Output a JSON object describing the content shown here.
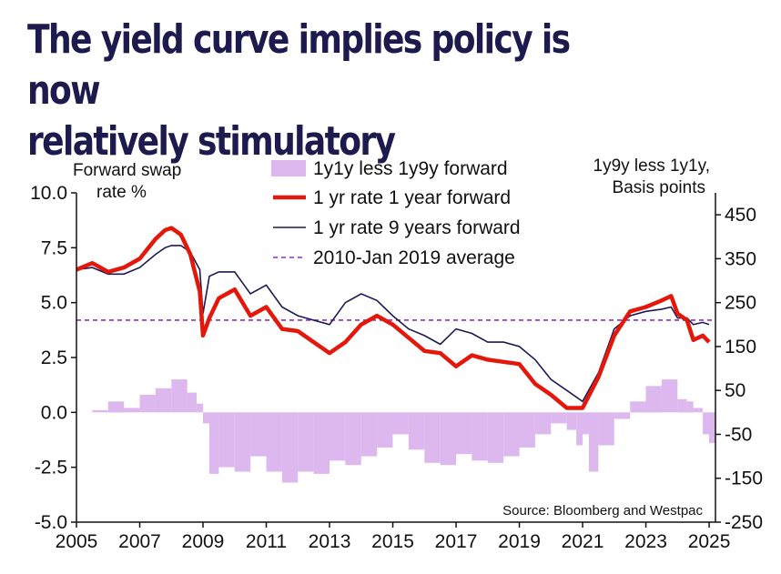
{
  "page": {
    "title_line1": "The yield curve implies policy is now",
    "title_line2": "relatively stimulatory"
  },
  "chart_data": {
    "type": "line",
    "left_axis_label_line1": "Forward swap",
    "left_axis_label_line2": "rate %",
    "right_axis_label_line1": "1y9y less 1y1y,",
    "right_axis_label_line2": "Basis points",
    "source": "Source: Bloomberg and Westpac",
    "xlim": [
      2005,
      2025.2
    ],
    "ylim_left": [
      -5,
      10
    ],
    "ylim_right": [
      -250,
      500
    ],
    "x_ticks": [
      "2005",
      "2007",
      "2009",
      "2011",
      "2013",
      "2015",
      "2017",
      "2019",
      "2021",
      "2023",
      "2025"
    ],
    "y_ticks_left": [
      "10.0",
      "7.5",
      "5.0",
      "2.5",
      "0.0",
      "-2.5",
      "-5.0"
    ],
    "y_ticks_right": [
      "450",
      "350",
      "250",
      "150",
      "50",
      "-50",
      "-150",
      "-250"
    ],
    "colors": {
      "spread": "#dcb8ef",
      "forward_1y": "#e3170a",
      "forward_9y": "#1c1a55",
      "average": "#8b2fc9",
      "axis": "#111111"
    },
    "average_value": 4.2,
    "series": [
      {
        "name": "1y1y less 1y9y forward",
        "type": "area",
        "axis": "left",
        "x": [
          2005.0,
          2005.5,
          2006.0,
          2006.5,
          2007.0,
          2007.5,
          2008.0,
          2008.5,
          2008.8,
          2009.0,
          2009.2,
          2009.5,
          2010.0,
          2010.5,
          2011.0,
          2011.5,
          2012.0,
          2012.5,
          2013.0,
          2013.5,
          2014.0,
          2014.5,
          2015.0,
          2015.5,
          2016.0,
          2016.5,
          2017.0,
          2017.5,
          2018.0,
          2018.5,
          2019.0,
          2019.5,
          2020.0,
          2020.5,
          2020.8,
          2021.0,
          2021.2,
          2021.5,
          2022.0,
          2022.5,
          2023.0,
          2023.5,
          2024.0,
          2024.3,
          2024.5,
          2024.8,
          2025.0
        ],
        "y": [
          0.0,
          0.1,
          0.5,
          0.2,
          0.8,
          1.1,
          1.5,
          0.9,
          0.4,
          -0.5,
          -2.8,
          -2.5,
          -2.7,
          -2.0,
          -2.7,
          -3.2,
          -2.7,
          -2.8,
          -2.2,
          -2.4,
          -2.0,
          -1.6,
          -1.0,
          -1.7,
          -2.3,
          -2.4,
          -1.9,
          -2.2,
          -2.3,
          -2.0,
          -1.6,
          -1.0,
          -0.5,
          -0.8,
          -1.5,
          -1.0,
          -2.7,
          -1.5,
          -0.3,
          0.5,
          1.2,
          1.5,
          0.6,
          0.5,
          0.2,
          -1.0,
          -1.4
        ]
      },
      {
        "name": "1 yr rate 1 year forward",
        "type": "line",
        "axis": "left",
        "x": [
          2005.0,
          2005.5,
          2006.0,
          2006.5,
          2007.0,
          2007.5,
          2007.8,
          2008.0,
          2008.3,
          2008.6,
          2008.9,
          2009.0,
          2009.2,
          2009.5,
          2010.0,
          2010.5,
          2011.0,
          2011.5,
          2012.0,
          2012.5,
          2013.0,
          2013.5,
          2014.0,
          2014.5,
          2015.0,
          2015.5,
          2016.0,
          2016.5,
          2017.0,
          2017.5,
          2018.0,
          2018.5,
          2019.0,
          2019.5,
          2020.0,
          2020.5,
          2021.0,
          2021.5,
          2022.0,
          2022.5,
          2023.0,
          2023.5,
          2023.8,
          2024.0,
          2024.3,
          2024.5,
          2024.8,
          2025.0
        ],
        "y": [
          6.5,
          6.8,
          6.4,
          6.6,
          7.0,
          7.9,
          8.3,
          8.4,
          8.1,
          7.2,
          5.5,
          3.5,
          4.3,
          5.2,
          5.6,
          4.4,
          4.8,
          3.8,
          3.7,
          3.2,
          2.7,
          3.2,
          4.0,
          4.4,
          4.0,
          3.4,
          2.8,
          2.7,
          2.1,
          2.6,
          2.4,
          2.3,
          2.2,
          1.3,
          0.8,
          0.2,
          0.2,
          1.6,
          3.5,
          4.6,
          4.8,
          5.1,
          5.3,
          4.5,
          4.2,
          3.3,
          3.5,
          3.2
        ]
      },
      {
        "name": "1 yr rate 9 years forward",
        "type": "line",
        "axis": "left",
        "x": [
          2005.0,
          2005.5,
          2006.0,
          2006.5,
          2007.0,
          2007.5,
          2007.8,
          2008.0,
          2008.3,
          2008.6,
          2008.9,
          2009.0,
          2009.2,
          2009.5,
          2010.0,
          2010.5,
          2011.0,
          2011.5,
          2012.0,
          2012.5,
          2013.0,
          2013.5,
          2014.0,
          2014.5,
          2015.0,
          2015.5,
          2016.0,
          2016.5,
          2017.0,
          2017.5,
          2018.0,
          2018.5,
          2019.0,
          2019.5,
          2020.0,
          2020.5,
          2021.0,
          2021.5,
          2022.0,
          2022.5,
          2023.0,
          2023.5,
          2023.8,
          2024.0,
          2024.3,
          2024.5,
          2024.8,
          2025.0
        ],
        "y": [
          6.5,
          6.6,
          6.3,
          6.3,
          6.6,
          7.2,
          7.5,
          7.6,
          7.6,
          7.3,
          6.5,
          4.5,
          6.2,
          6.4,
          6.4,
          5.4,
          5.8,
          4.8,
          4.4,
          4.2,
          4.0,
          5.0,
          5.4,
          5.1,
          4.4,
          3.8,
          3.5,
          3.1,
          3.8,
          3.6,
          3.2,
          3.2,
          3.0,
          2.4,
          1.5,
          1.0,
          0.5,
          1.8,
          3.8,
          4.4,
          4.6,
          4.7,
          4.8,
          4.3,
          4.3,
          4.0,
          4.1,
          4.0
        ]
      },
      {
        "name": "2010-Jan 2019 average",
        "type": "hline",
        "axis": "left"
      }
    ]
  }
}
